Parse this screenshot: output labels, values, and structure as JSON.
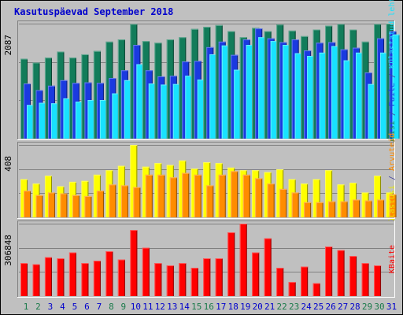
{
  "chart_data": {
    "type": "bar",
    "title": "Kasutuspäevad September 2018",
    "categories": [
      "1",
      "2",
      "3",
      "4",
      "5",
      "6",
      "7",
      "8",
      "9",
      "10",
      "11",
      "12",
      "13",
      "14",
      "15",
      "16",
      "17",
      "18",
      "19",
      "20",
      "21",
      "22",
      "23",
      "24",
      "25",
      "26",
      "27",
      "28",
      "29",
      "30",
      "31"
    ],
    "weekend_days": [
      "1",
      "2",
      "8",
      "9",
      "15",
      "16",
      "22",
      "23",
      "29",
      "30"
    ],
    "panels": [
      {
        "name": "top",
        "max_label": "2087",
        "ymax": 2087,
        "grid": true,
        "series": [
          {
            "name": "Pöördumisi",
            "color": "#127c5a",
            "values": [
              1450,
              1380,
              1470,
              1580,
              1470,
              1530,
              1590,
              1760,
              1800,
              2080,
              1770,
              1740,
              1800,
              1840,
              1990,
              2030,
              2060,
              1950,
              1840,
              2010,
              1950,
              2070,
              1960,
              1860,
              1980,
              2050,
              2080,
              1980,
              1760,
              2080,
              2087
            ]
          },
          {
            "name": "Faile",
            "color": "#1a3ae0",
            "values": [
              1000,
              880,
              960,
              1060,
              1010,
              1020,
              1010,
              1100,
              1240,
              1700,
              1240,
              1130,
              1140,
              1400,
              1410,
              1660,
              1760,
              1520,
              1800,
              2000,
              1820,
              1750,
              1800,
              1600,
              1740,
              1750,
              1620,
              1650,
              1200,
              1820,
              1950
            ]
          },
          {
            "name": "Külastatud lehti",
            "color": "#18e2ff",
            "values": [
              610,
              650,
              640,
              730,
              670,
              700,
              700,
              820,
              1060,
              1350,
              1000,
              980,
              990,
              1140,
              1070,
              1530,
              1690,
              1250,
              1700,
              1840,
              1770,
              1700,
              1550,
              1500,
              1560,
              1680,
              1420,
              1560,
              990,
              1560,
              1890
            ]
          }
        ]
      },
      {
        "name": "middle",
        "max_label": "408",
        "ymax": 408,
        "grid": true,
        "series": [
          {
            "name": "Külastusi",
            "color": "#ffff00",
            "values": [
              215,
              190,
              235,
              175,
              200,
              205,
              240,
              265,
              290,
              408,
              285,
              305,
              295,
              320,
              275,
              310,
              305,
              280,
              265,
              265,
              255,
              270,
              215,
              190,
              215,
              265,
              185,
              195,
              140,
              235,
              140
            ]
          },
          {
            "name": "Arvuteid",
            "color": "#ff8c00",
            "values": [
              150,
              125,
              140,
              135,
              125,
              120,
              150,
              185,
              180,
              170,
              240,
              240,
              225,
              250,
              240,
              180,
              240,
              260,
              240,
              220,
              190,
              160,
              140,
              85,
              85,
              90,
              90,
              100,
              95,
              100,
              130
            ]
          }
        ]
      },
      {
        "name": "bottom",
        "max_label": "306848",
        "ymax": 306848,
        "grid": true,
        "series": [
          {
            "name": "KBaite",
            "color": "#ff0000",
            "values": [
              140000,
              135000,
              165000,
              160000,
              185000,
              140000,
              150000,
              190000,
              155000,
              280000,
              205000,
              140000,
              130000,
              140000,
              120000,
              160000,
              160000,
              270000,
              306848,
              185000,
              245000,
              120000,
              60000,
              125000,
              55000,
              210000,
              195000,
              170000,
              140000,
              130000,
              0
            ]
          }
        ]
      }
    ],
    "right_labels": {
      "top": [
        {
          "text": "Pöördumisi",
          "color": "#127c5a"
        },
        {
          "text": " / ",
          "color": "#4040a0"
        },
        {
          "text": "Faile",
          "color": "#1a3ae0"
        },
        {
          "text": " / ",
          "color": "#4040a0"
        },
        {
          "text": "Külastatud lehti",
          "color": "#18e2ff"
        }
      ],
      "middle": [
        {
          "text": "Külastusi",
          "color": "#e8e800"
        },
        {
          "text": " / ",
          "color": "#4040a0"
        },
        {
          "text": "Arvuteid",
          "color": "#ff8c00"
        }
      ],
      "bottom": [
        {
          "text": "KBaite",
          "color": "#ff0000"
        }
      ]
    },
    "colors": {
      "title": "#0000cc",
      "weekend_label": "#1a7a4a",
      "weekday_label": "#0000cc",
      "panel_bg": "#c0c0c0"
    }
  }
}
